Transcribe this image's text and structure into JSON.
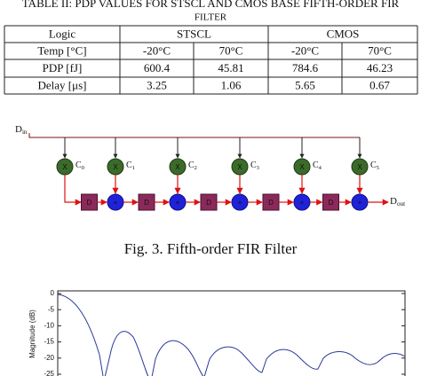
{
  "table": {
    "title": "TABLE II: PDP VALUES FOR STSCL AND CMOS BASE FIFTH-ORDER FIR",
    "title_continued": "FILTER",
    "header": [
      "Logic",
      "STSCL",
      "CMOS"
    ],
    "rows": [
      [
        "Temp [°C]",
        "-20°C",
        "70°C",
        "-20°C",
        "70°C"
      ],
      [
        "PDP [fJ]",
        600.4,
        45.81,
        784.6,
        46.23
      ],
      [
        "Delay [μs]",
        3.25,
        1.06,
        5.65,
        0.67
      ]
    ]
  },
  "diagram": {
    "input": {
      "main": "D",
      "sub": "in"
    },
    "output": {
      "main": "D",
      "sub": "out"
    },
    "coefficients": [
      {
        "main": "C",
        "sub": "0"
      },
      {
        "main": "C",
        "sub": "1"
      },
      {
        "main": "C",
        "sub": "2"
      },
      {
        "main": "C",
        "sub": "3"
      },
      {
        "main": "C",
        "sub": "4"
      },
      {
        "main": "C",
        "sub": "5"
      }
    ],
    "multiplier_symbol": "X",
    "adder_symbol": "+",
    "delay_label": "D",
    "caption": "Fig. 3. Fifth-order FIR Filter"
  },
  "chart": {
    "ylabel": "Magnitude (dB)",
    "ylim": [
      -25,
      0
    ],
    "yticks": [
      0,
      -5,
      -10,
      -15,
      -20,
      -25
    ]
  }
}
